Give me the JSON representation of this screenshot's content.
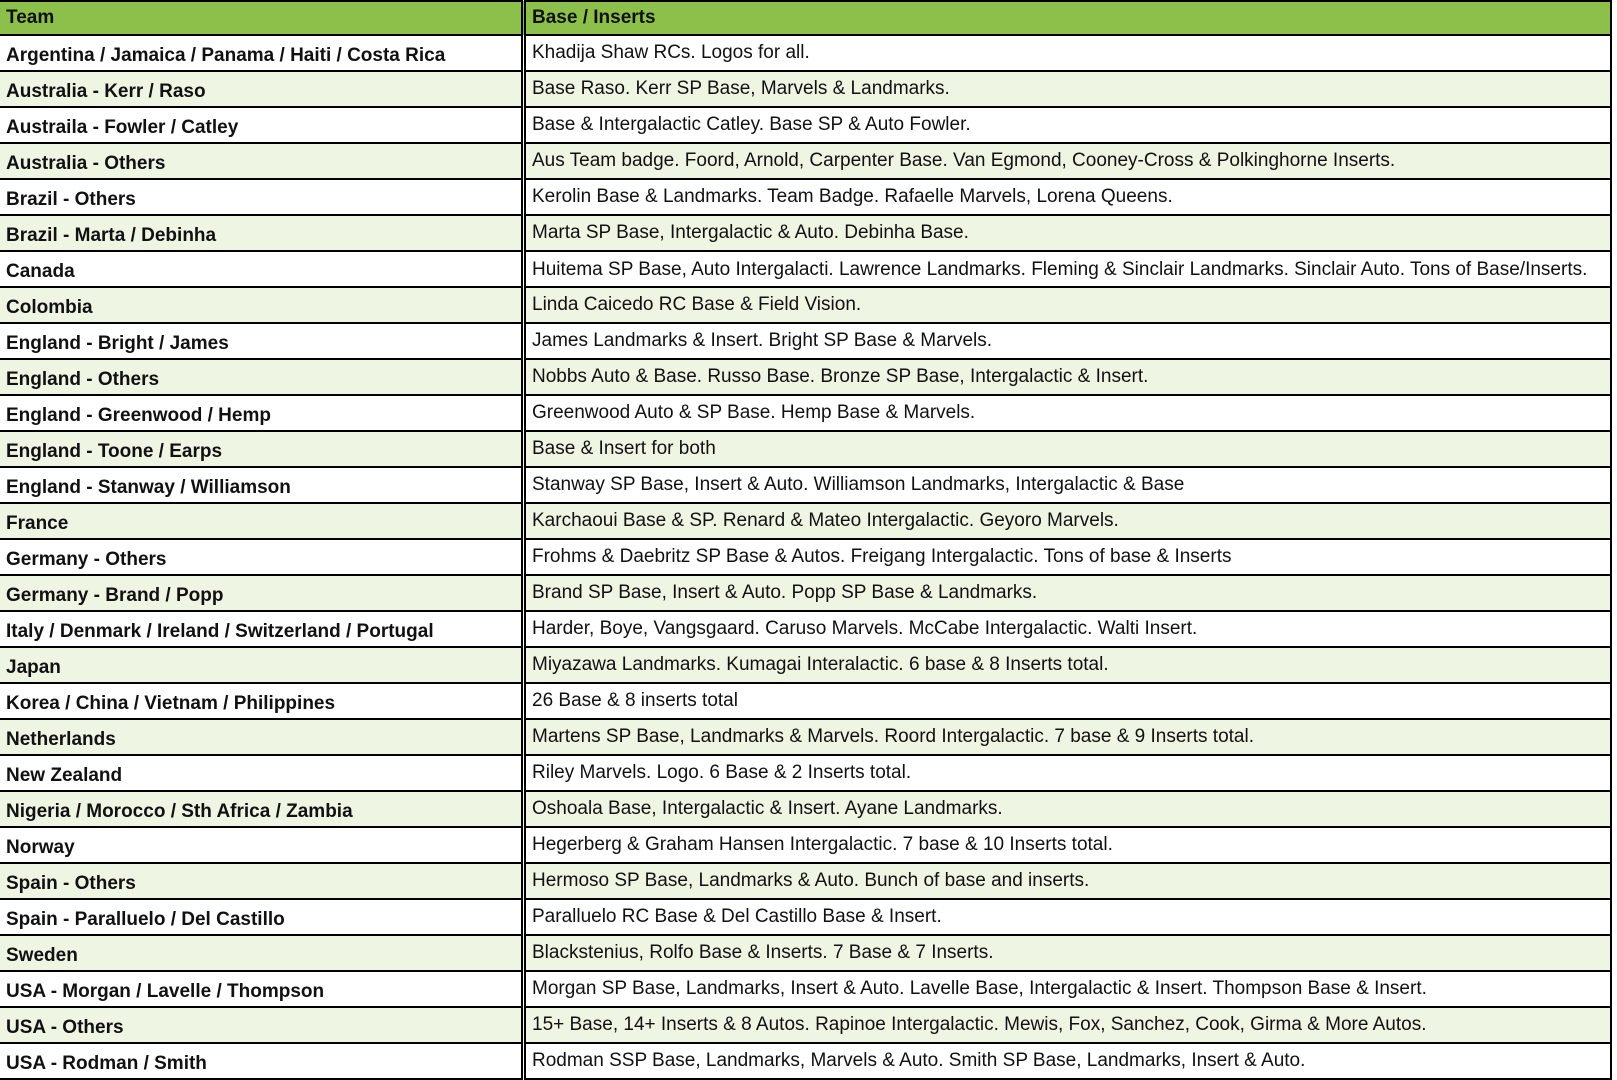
{
  "table": {
    "headers": {
      "team": "Team",
      "base_inserts": "Base / Inserts"
    },
    "colors": {
      "header": "#8cc04b",
      "alt_row": "#eef5e3"
    },
    "rows": [
      {
        "team": "Argentina / Jamaica / Panama / Haiti / Costa Rica",
        "desc": "Khadija Shaw RCs. Logos for all."
      },
      {
        "team": "Australia - Kerr / Raso",
        "desc": "Base Raso. Kerr SP Base, Marvels & Landmarks."
      },
      {
        "team": "Austraila - Fowler / Catley",
        "desc": "Base & Intergalactic Catley. Base SP & Auto Fowler."
      },
      {
        "team": "Australia - Others",
        "desc": "Aus Team badge. Foord, Arnold, Carpenter Base. Van Egmond, Cooney-Cross & Polkinghorne Inserts."
      },
      {
        "team": "Brazil - Others",
        "desc": "Kerolin Base & Landmarks. Team Badge. Rafaelle Marvels, Lorena Queens."
      },
      {
        "team": "Brazil - Marta / Debinha",
        "desc": "Marta SP Base, Intergalactic & Auto. Debinha Base."
      },
      {
        "team": "Canada",
        "desc": "Huitema SP Base, Auto Intergalacti. Lawrence Landmarks. Fleming & Sinclair Landmarks. Sinclair Auto. Tons of Base/Inserts."
      },
      {
        "team": "Colombia",
        "desc": "Linda Caicedo RC Base & Field Vision."
      },
      {
        "team": "England - Bright / James",
        "desc": "James Landmarks & Insert. Bright SP Base & Marvels."
      },
      {
        "team": "England - Others",
        "desc": "Nobbs Auto & Base. Russo Base. Bronze SP Base, Intergalactic & Insert."
      },
      {
        "team": "England - Greenwood / Hemp",
        "desc": "Greenwood Auto & SP Base. Hemp Base & Marvels."
      },
      {
        "team": "England - Toone / Earps",
        "desc": "Base & Insert for both"
      },
      {
        "team": "England - Stanway / Williamson",
        "desc": "Stanway SP Base, Insert & Auto. Williamson Landmarks, Intergalactic & Base"
      },
      {
        "team": "France",
        "desc": "Karchaoui Base & SP. Renard & Mateo Intergalactic. Geyoro Marvels."
      },
      {
        "team": "Germany - Others",
        "desc": "Frohms & Daebritz SP Base & Autos. Freigang Intergalactic. Tons of base & Inserts"
      },
      {
        "team": "Germany - Brand / Popp",
        "desc": "Brand SP Base, Insert & Auto. Popp SP Base & Landmarks."
      },
      {
        "team": "Italy / Denmark / Ireland / Switzerland / Portugal",
        "desc": "Harder, Boye, Vangsgaard. Caruso Marvels. McCabe Intergalactic. Walti Insert."
      },
      {
        "team": "Japan",
        "desc": "Miyazawa Landmarks. Kumagai Interalactic. 6 base & 8 Inserts total."
      },
      {
        "team": "Korea / China / Vietnam / Philippines",
        "desc": "26 Base & 8 inserts total"
      },
      {
        "team": "Netherlands",
        "desc": "Martens SP Base, Landmarks & Marvels. Roord Intergalactic. 7 base & 9 Inserts total."
      },
      {
        "team": "New Zealand",
        "desc": "Riley Marvels. Logo. 6 Base & 2 Inserts total."
      },
      {
        "team": "Nigeria / Morocco / Sth Africa / Zambia",
        "desc": "Oshoala Base, Intergalactic & Insert. Ayane Landmarks."
      },
      {
        "team": "Norway",
        "desc": "Hegerberg & Graham Hansen Intergalactic. 7 base & 10 Inserts total."
      },
      {
        "team": "Spain - Others",
        "desc": "Hermoso SP Base, Landmarks & Auto. Bunch of base and inserts."
      },
      {
        "team": "Spain - Paralluelo / Del Castillo",
        "desc": "Paralluelo RC Base & Del Castillo Base & Insert."
      },
      {
        "team": "Sweden",
        "desc": "Blackstenius, Rolfo Base & Inserts. 7 Base & 7 Inserts."
      },
      {
        "team": "USA - Morgan / Lavelle / Thompson",
        "desc": "Morgan SP Base, Landmarks, Insert & Auto. Lavelle Base, Intergalactic & Insert. Thompson Base & Insert."
      },
      {
        "team": "USA - Others",
        "desc": "15+ Base, 14+ Inserts & 8 Autos. Rapinoe Intergalactic. Mewis, Fox, Sanchez, Cook, Girma & More Autos."
      },
      {
        "team": "USA - Rodman / Smith",
        "desc": "Rodman SSP Base, Landmarks, Marvels & Auto. Smith SP Base, Landmarks, Insert & Auto."
      }
    ]
  }
}
